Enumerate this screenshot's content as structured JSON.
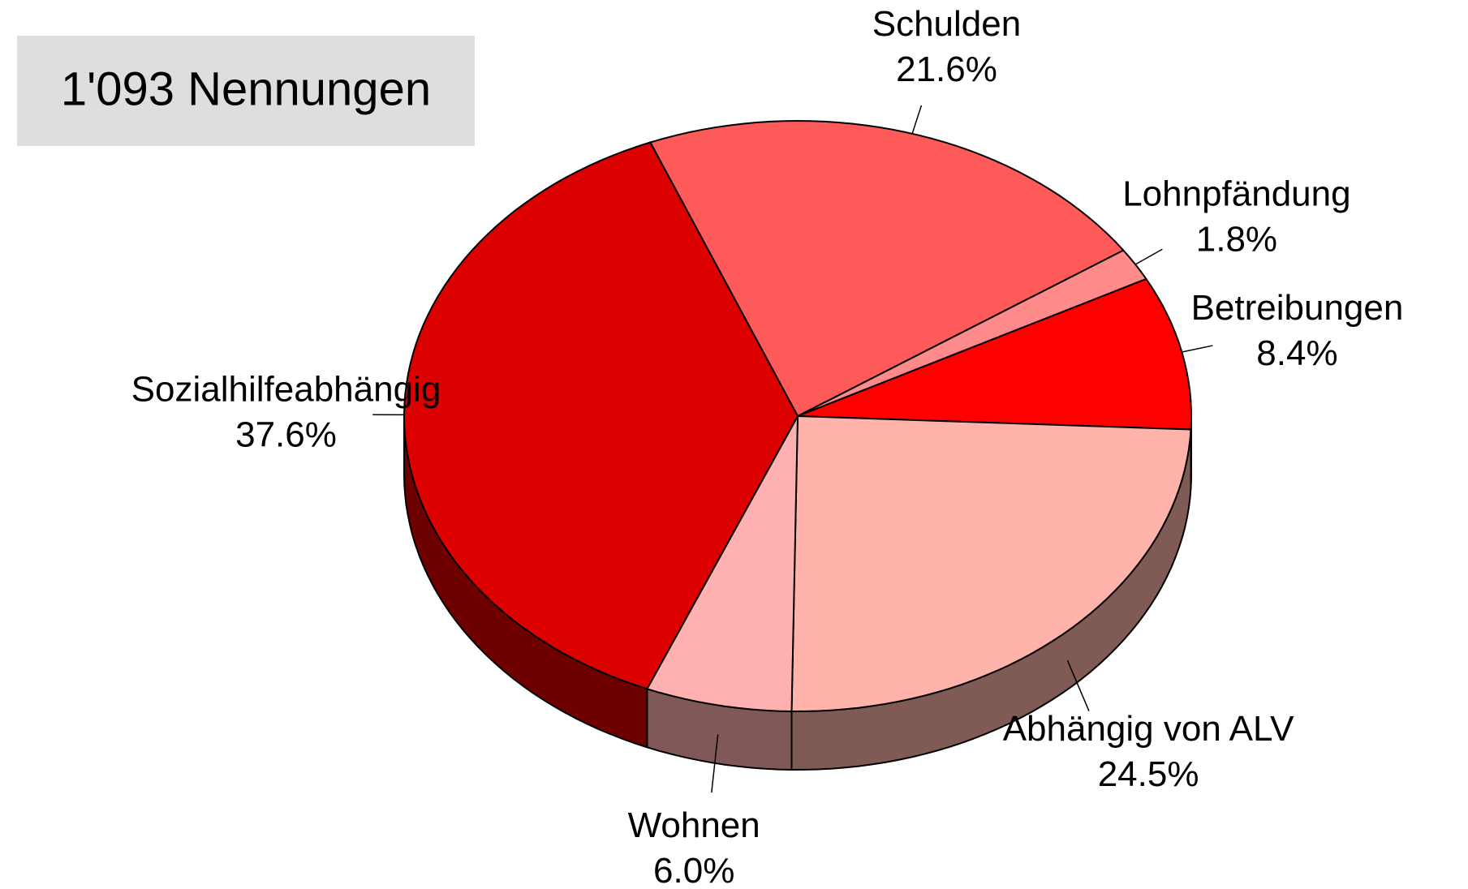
{
  "chart_data": {
    "type": "pie",
    "annotation": "1'093 Nennungen",
    "categories": [
      "Schulden",
      "Lohnpfändung",
      "Betreibungen",
      "Abhängig von ALV",
      "Wohnen",
      "Sozialhilfeabhängig"
    ],
    "values": [
      21.6,
      1.8,
      8.4,
      24.5,
      6.0,
      37.6
    ],
    "value_labels": [
      "21.6%",
      "1.8%",
      "8.4%",
      "24.5%",
      "6.0%",
      "37.6%"
    ],
    "colors": [
      "#ff5a5a",
      "#ff8a8a",
      "#ff0000",
      "#ffb3aa",
      "#ffb0b0",
      "#dd0000"
    ]
  }
}
